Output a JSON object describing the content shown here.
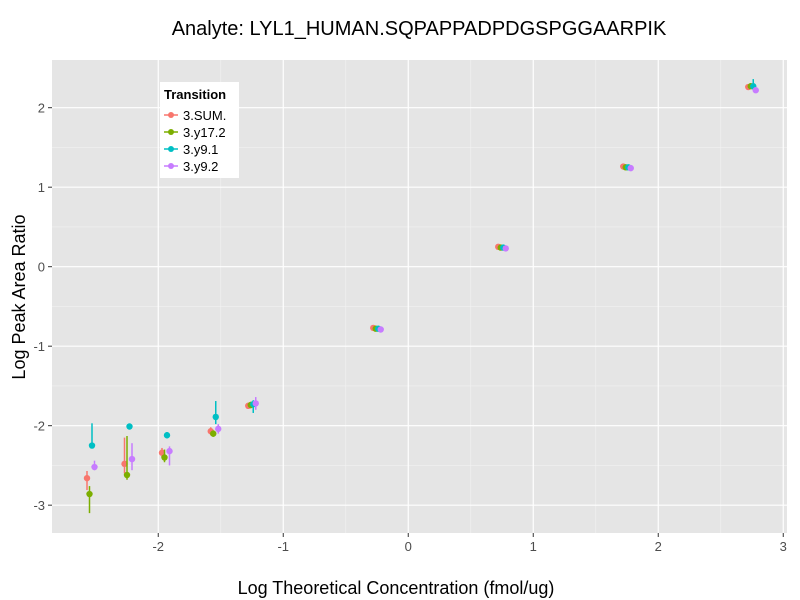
{
  "chart_data": {
    "type": "scatter",
    "title": "Analyte: LYL1_HUMAN.SQPAPPADPDGSPGGAARPIK",
    "xlabel": "Log Theoretical Concentration (fmol/ug)",
    "ylabel": "Log Peak Area Ratio",
    "xlim": [
      -2.85,
      3.03
    ],
    "ylim": [
      -3.35,
      2.6
    ],
    "xticks": [
      -2,
      -1,
      0,
      1,
      2,
      3
    ],
    "yticks": [
      -3,
      -2,
      -1,
      0,
      1,
      2
    ],
    "xtick_labels": [
      "-2",
      "-1",
      "0",
      "1",
      "2",
      "3"
    ],
    "ytick_labels": [
      "-3",
      "-2",
      "-1",
      "0",
      "1",
      "2"
    ],
    "grid": true,
    "error_bars": true,
    "legend": {
      "title": "Transition",
      "placement": "top-left"
    },
    "series": [
      {
        "name": "3.SUM.",
        "color": "#F8766D",
        "points": [
          {
            "x": -2.57,
            "y": -2.66,
            "lo": -2.81,
            "hi": -2.57
          },
          {
            "x": -2.27,
            "y": -2.48,
            "lo": -2.6,
            "hi": -2.15
          },
          {
            "x": -1.97,
            "y": -2.34,
            "lo": -2.4,
            "hi": -2.28
          },
          {
            "x": -1.58,
            "y": -2.07,
            "lo": -2.12,
            "hi": -2.02
          },
          {
            "x": -1.28,
            "y": -1.75,
            "lo": -1.79,
            "hi": -1.71
          },
          {
            "x": -0.28,
            "y": -0.77,
            "lo": -0.79,
            "hi": -0.75
          },
          {
            "x": 0.72,
            "y": 0.25,
            "lo": 0.23,
            "hi": 0.27
          },
          {
            "x": 1.72,
            "y": 1.26,
            "lo": 1.24,
            "hi": 1.28
          },
          {
            "x": 2.72,
            "y": 2.26,
            "lo": 2.24,
            "hi": 2.28
          }
        ]
      },
      {
        "name": "3.y17.2",
        "color": "#7CAE00",
        "points": [
          {
            "x": -2.55,
            "y": -2.86,
            "lo": -3.1,
            "hi": -2.76
          },
          {
            "x": -2.25,
            "y": -2.62,
            "lo": -2.68,
            "hi": -2.13
          },
          {
            "x": -1.95,
            "y": -2.4,
            "lo": -2.46,
            "hi": -2.3
          },
          {
            "x": -1.56,
            "y": -2.1,
            "lo": -2.14,
            "hi": -2.06
          },
          {
            "x": -1.26,
            "y": -1.74,
            "lo": -1.78,
            "hi": -1.7
          },
          {
            "x": -0.26,
            "y": -0.78,
            "lo": -0.8,
            "hi": -0.76
          },
          {
            "x": 0.74,
            "y": 0.24,
            "lo": 0.22,
            "hi": 0.26
          },
          {
            "x": 1.74,
            "y": 1.25,
            "lo": 1.23,
            "hi": 1.27
          },
          {
            "x": 2.74,
            "y": 2.27,
            "lo": 2.25,
            "hi": 2.29
          }
        ]
      },
      {
        "name": "3.y9.1",
        "color": "#00BFC4",
        "points": [
          {
            "x": -2.53,
            "y": -2.25,
            "lo": -2.28,
            "hi": -1.97
          },
          {
            "x": -2.23,
            "y": -2.01,
            "lo": -2.05,
            "hi": -1.99
          },
          {
            "x": -1.93,
            "y": -2.12,
            "lo": -2.16,
            "hi": -2.08
          },
          {
            "x": -1.54,
            "y": -1.89,
            "lo": -1.98,
            "hi": -1.69
          },
          {
            "x": -1.24,
            "y": -1.73,
            "lo": -1.84,
            "hi": -1.68
          },
          {
            "x": -0.24,
            "y": -0.78,
            "lo": -0.8,
            "hi": -0.76
          },
          {
            "x": 0.76,
            "y": 0.24,
            "lo": 0.22,
            "hi": 0.26
          },
          {
            "x": 1.76,
            "y": 1.25,
            "lo": 1.23,
            "hi": 1.27
          },
          {
            "x": 2.76,
            "y": 2.27,
            "lo": 2.22,
            "hi": 2.36
          }
        ]
      },
      {
        "name": "3.y9.2",
        "color": "#C77CFF",
        "points": [
          {
            "x": -2.51,
            "y": -2.52,
            "lo": -2.56,
            "hi": -2.44
          },
          {
            "x": -2.21,
            "y": -2.42,
            "lo": -2.56,
            "hi": -2.22
          },
          {
            "x": -1.91,
            "y": -2.32,
            "lo": -2.5,
            "hi": -2.26
          },
          {
            "x": -1.52,
            "y": -2.04,
            "lo": -2.1,
            "hi": -1.98
          },
          {
            "x": -1.22,
            "y": -1.72,
            "lo": -1.8,
            "hi": -1.64
          },
          {
            "x": -0.22,
            "y": -0.79,
            "lo": -0.81,
            "hi": -0.77
          },
          {
            "x": 0.78,
            "y": 0.23,
            "lo": 0.21,
            "hi": 0.25
          },
          {
            "x": 1.78,
            "y": 1.24,
            "lo": 1.22,
            "hi": 1.26
          },
          {
            "x": 2.78,
            "y": 2.22,
            "lo": 2.2,
            "hi": 2.24
          }
        ]
      }
    ]
  },
  "colors": {
    "panel_background": "#E5E5E5",
    "grid_major": "#FFFFFF",
    "grid_minor": "#F2F2F2",
    "tick_label": "#4D4D4D"
  }
}
